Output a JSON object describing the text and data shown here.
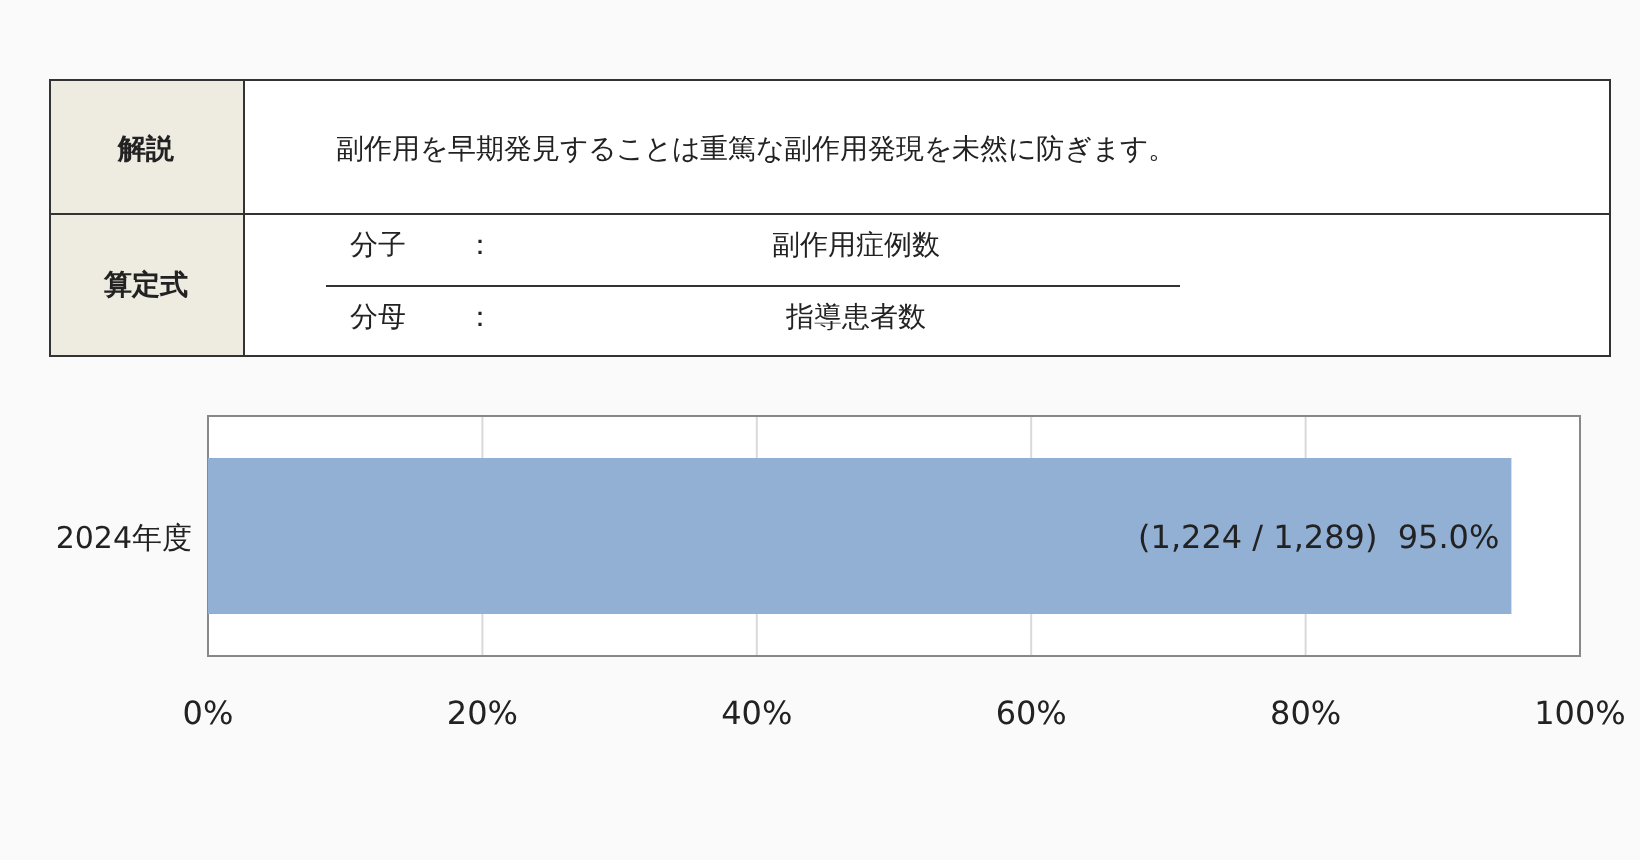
{
  "chart_data": [
    {
      "type": "other",
      "annotations": [
        "解説",
        "副作用を早期発見することは重篤な副作用発現を未然に防ぎます。",
        "算定式",
        "分子",
        "：",
        "副作用症例数",
        "分母",
        "：",
        "指導患者数"
      ]
    },
    {
      "type": "bar",
      "orientation": "horizontal",
      "categories": [
        "2024年度"
      ],
      "values": [
        95.0
      ],
      "color": "#92afd4",
      "xlim": [
        0,
        100
      ],
      "xticks": [
        {
          "value": 0,
          "label": "0%"
        },
        {
          "value": 20,
          "label": "20%"
        },
        {
          "value": 40,
          "label": "40%"
        },
        {
          "value": 60,
          "label": "60%"
        },
        {
          "value": 80,
          "label": "80%"
        },
        {
          "value": 100,
          "label": "100%"
        }
      ],
      "grid": "x",
      "value_labels": [
        "(1,224 / 1,289)  95.0%"
      ]
    }
  ]
}
